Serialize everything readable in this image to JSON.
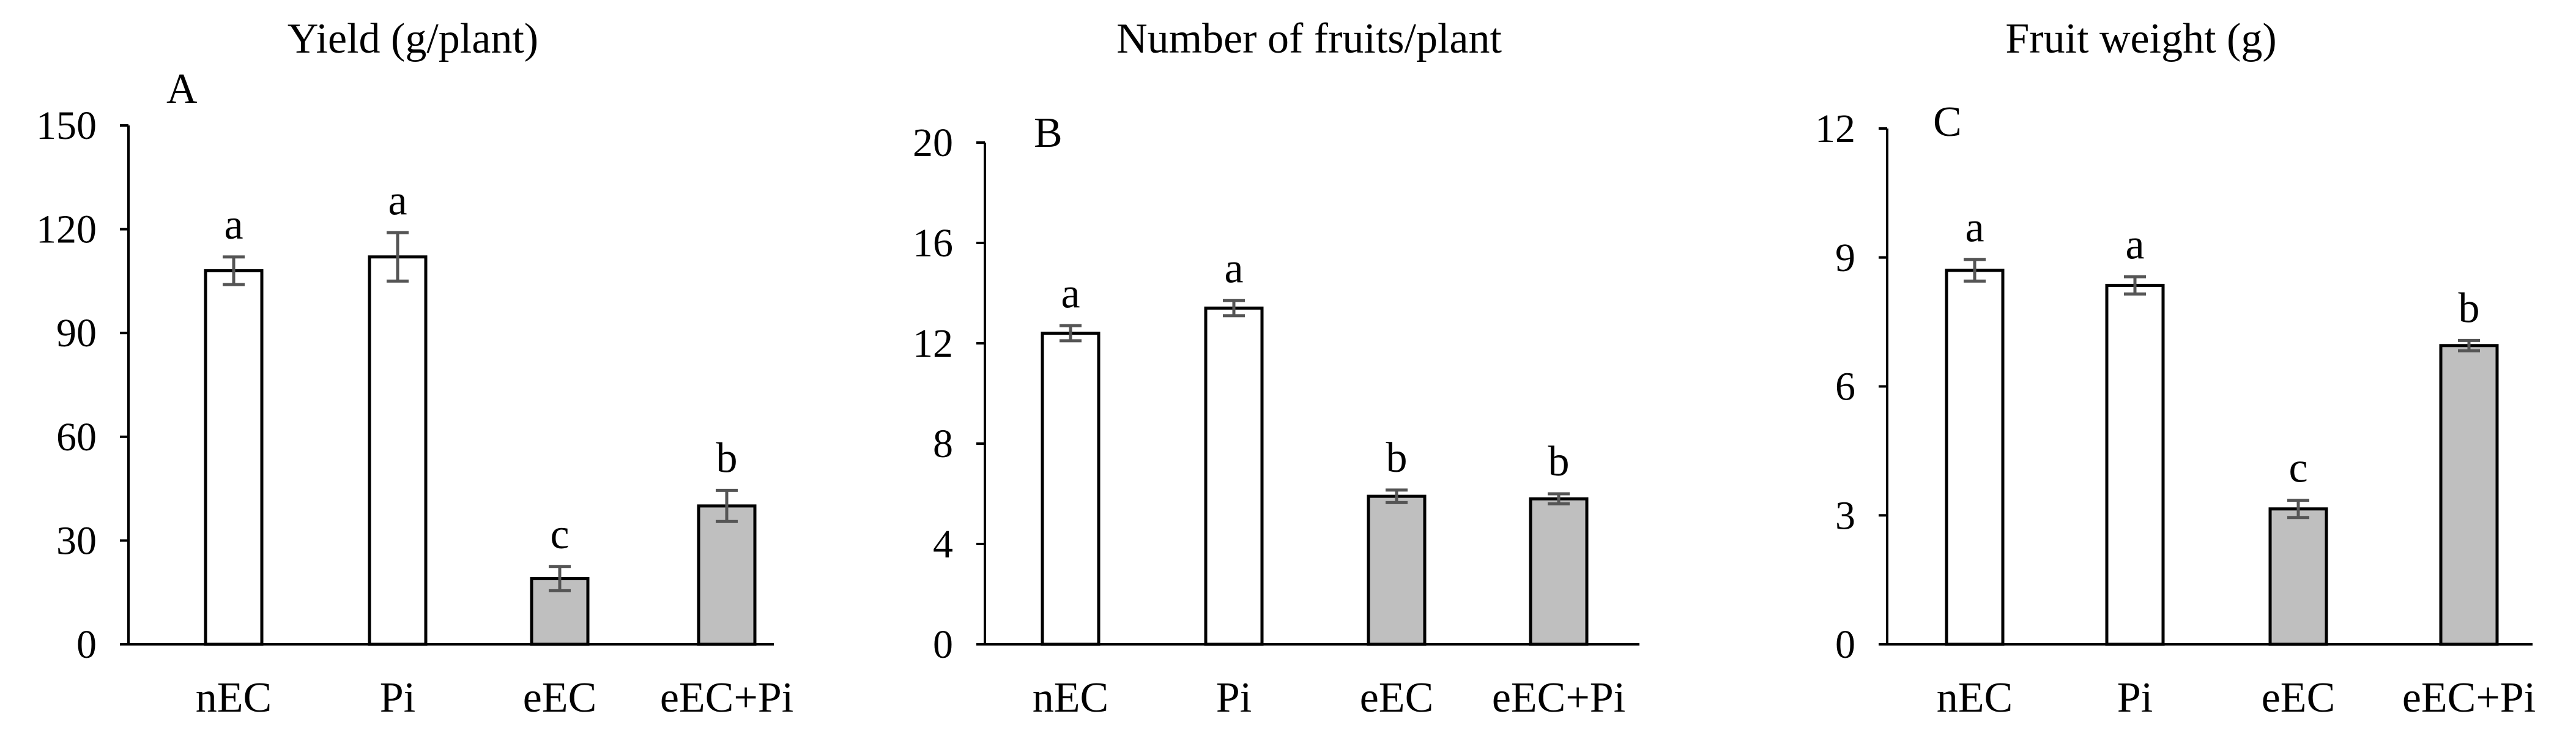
{
  "chart_data": [
    {
      "type": "bar",
      "panel_label": "A",
      "title": "Yield (g/plant)",
      "xlabel": "",
      "ylabel": "",
      "categories": [
        "nEC",
        "Pi",
        "eEC",
        "eEC+Pi"
      ],
      "values": [
        108,
        112,
        19,
        40
      ],
      "errors": [
        4,
        7,
        3.5,
        4.5
      ],
      "significance": [
        "a",
        "a",
        "c",
        "b"
      ],
      "bar_colors": [
        "#ffffff",
        "#ffffff",
        "#bfbfbf",
        "#bfbfbf"
      ],
      "yticks": [
        "0",
        "30",
        "60",
        "90",
        "120",
        "150"
      ],
      "ylim": [
        0,
        150
      ],
      "grid": false,
      "legend": "none"
    },
    {
      "type": "bar",
      "panel_label": "B",
      "title": "Number of fruits/plant",
      "xlabel": "",
      "ylabel": "",
      "categories": [
        "nEC",
        "Pi",
        "eEC",
        "eEC+Pi"
      ],
      "values": [
        12.4,
        13.4,
        5.9,
        5.8
      ],
      "errors": [
        0.3,
        0.3,
        0.25,
        0.2
      ],
      "significance": [
        "a",
        "a",
        "b",
        "b"
      ],
      "bar_colors": [
        "#ffffff",
        "#ffffff",
        "#bfbfbf",
        "#bfbfbf"
      ],
      "yticks": [
        "0",
        "4",
        "8",
        "12",
        "16",
        "20"
      ],
      "ylim": [
        0,
        20
      ],
      "grid": false,
      "legend": "none"
    },
    {
      "type": "bar",
      "panel_label": "C",
      "title": "Fruit weight (g)",
      "xlabel": "",
      "ylabel": "",
      "categories": [
        "nEC",
        "Pi",
        "eEC",
        "eEC+Pi"
      ],
      "values": [
        8.7,
        8.35,
        3.15,
        6.95
      ],
      "errors": [
        0.25,
        0.2,
        0.2,
        0.12
      ],
      "significance": [
        "a",
        "a",
        "c",
        "b"
      ],
      "bar_colors": [
        "#ffffff",
        "#ffffff",
        "#bfbfbf",
        "#bfbfbf"
      ],
      "yticks": [
        "0",
        "3",
        "6",
        "9",
        "12"
      ],
      "ylim": [
        0,
        12
      ],
      "grid": false,
      "legend": "none"
    }
  ]
}
